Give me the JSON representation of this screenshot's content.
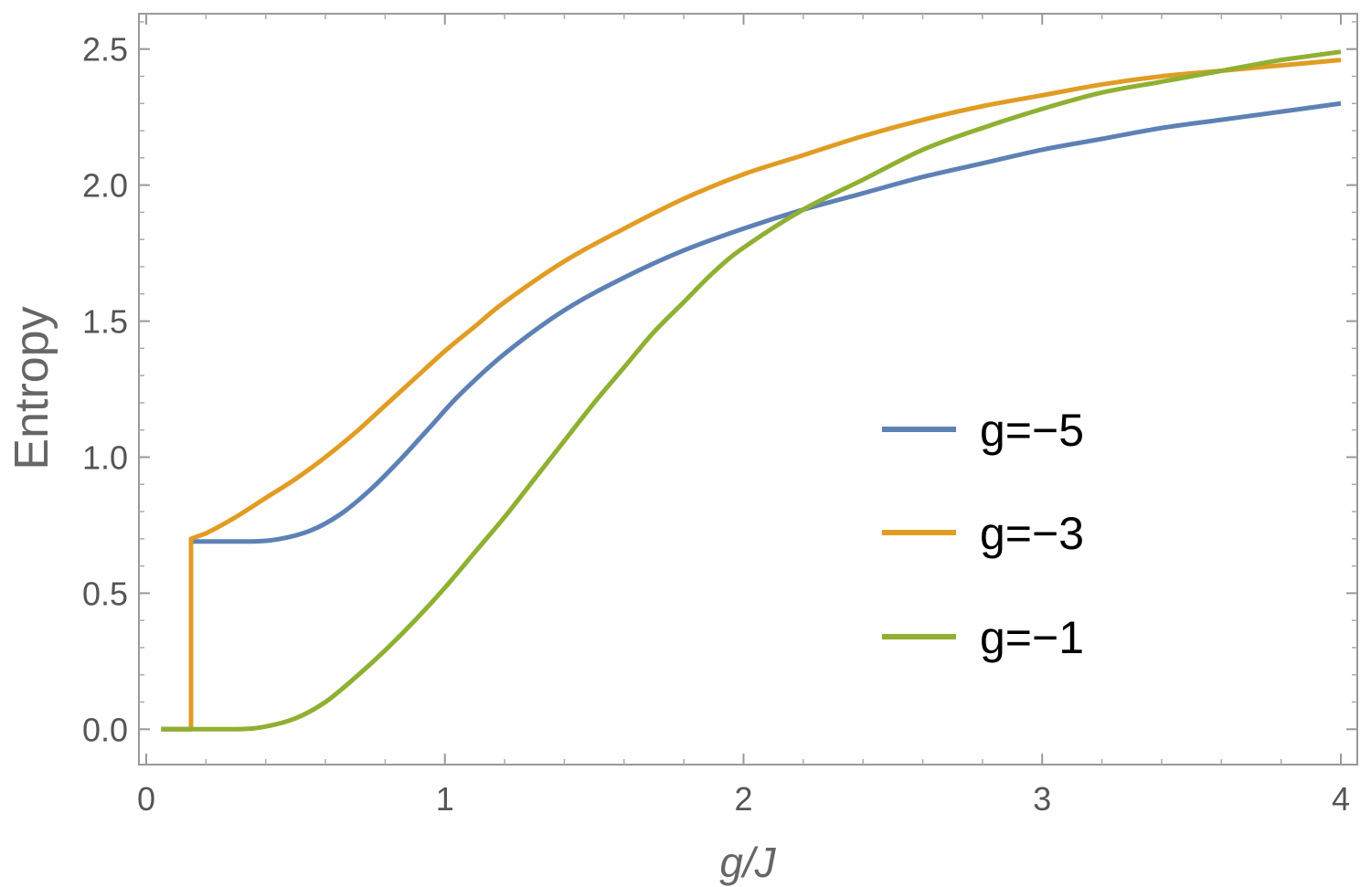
{
  "chart_data": {
    "type": "line",
    "title": "",
    "xlabel": "g/J",
    "ylabel": "Entropy",
    "xlim": [
      0,
      4
    ],
    "ylim": [
      -0.13,
      2.63
    ],
    "xticks": [
      "0",
      "1",
      "2",
      "3",
      "4"
    ],
    "yticks": [
      "0.0",
      "0.5",
      "1.0",
      "1.5",
      "2.0",
      "2.5"
    ],
    "grid": false,
    "legend_position": "center-right",
    "series": [
      {
        "name": "g=−5",
        "color": "#5E81B5",
        "points": [
          [
            0.05,
            0.0
          ],
          [
            0.15,
            0.0
          ],
          [
            0.15,
            0.69
          ],
          [
            0.35,
            0.69
          ],
          [
            0.45,
            0.7
          ],
          [
            0.55,
            0.73
          ],
          [
            0.65,
            0.79
          ],
          [
            0.75,
            0.88
          ],
          [
            0.85,
            0.99
          ],
          [
            0.95,
            1.11
          ],
          [
            1.05,
            1.23
          ],
          [
            1.2,
            1.38
          ],
          [
            1.4,
            1.54
          ],
          [
            1.6,
            1.66
          ],
          [
            1.8,
            1.76
          ],
          [
            2.0,
            1.84
          ],
          [
            2.2,
            1.91
          ],
          [
            2.4,
            1.97
          ],
          [
            2.6,
            2.03
          ],
          [
            2.8,
            2.08
          ],
          [
            3.0,
            2.13
          ],
          [
            3.2,
            2.17
          ],
          [
            3.4,
            2.21
          ],
          [
            3.6,
            2.24
          ],
          [
            3.8,
            2.27
          ],
          [
            4.0,
            2.3
          ]
        ]
      },
      {
        "name": "g=−3",
        "color": "#E19C24",
        "points": [
          [
            0.05,
            0.0
          ],
          [
            0.15,
            0.0
          ],
          [
            0.15,
            0.7
          ],
          [
            0.2,
            0.72
          ],
          [
            0.3,
            0.78
          ],
          [
            0.4,
            0.85
          ],
          [
            0.5,
            0.92
          ],
          [
            0.6,
            1.0
          ],
          [
            0.7,
            1.09
          ],
          [
            0.8,
            1.19
          ],
          [
            0.9,
            1.29
          ],
          [
            1.0,
            1.39
          ],
          [
            1.1,
            1.48
          ],
          [
            1.2,
            1.57
          ],
          [
            1.4,
            1.72
          ],
          [
            1.6,
            1.84
          ],
          [
            1.8,
            1.95
          ],
          [
            2.0,
            2.04
          ],
          [
            2.2,
            2.11
          ],
          [
            2.4,
            2.18
          ],
          [
            2.6,
            2.24
          ],
          [
            2.8,
            2.29
          ],
          [
            3.0,
            2.33
          ],
          [
            3.2,
            2.37
          ],
          [
            3.4,
            2.4
          ],
          [
            3.6,
            2.42
          ],
          [
            3.8,
            2.44
          ],
          [
            4.0,
            2.46
          ]
        ]
      },
      {
        "name": "g=−1",
        "color": "#8FB032",
        "points": [
          [
            0.05,
            0.0
          ],
          [
            0.3,
            0.0
          ],
          [
            0.4,
            0.01
          ],
          [
            0.5,
            0.04
          ],
          [
            0.6,
            0.1
          ],
          [
            0.7,
            0.19
          ],
          [
            0.8,
            0.29
          ],
          [
            0.9,
            0.4
          ],
          [
            1.0,
            0.52
          ],
          [
            1.1,
            0.65
          ],
          [
            1.2,
            0.78
          ],
          [
            1.3,
            0.92
          ],
          [
            1.4,
            1.06
          ],
          [
            1.5,
            1.2
          ],
          [
            1.6,
            1.33
          ],
          [
            1.7,
            1.46
          ],
          [
            1.8,
            1.57
          ],
          [
            1.9,
            1.68
          ],
          [
            2.0,
            1.77
          ],
          [
            2.2,
            1.91
          ],
          [
            2.4,
            2.02
          ],
          [
            2.6,
            2.13
          ],
          [
            2.8,
            2.21
          ],
          [
            3.0,
            2.28
          ],
          [
            3.2,
            2.34
          ],
          [
            3.4,
            2.38
          ],
          [
            3.6,
            2.42
          ],
          [
            3.8,
            2.46
          ],
          [
            4.0,
            2.49
          ]
        ]
      }
    ]
  }
}
